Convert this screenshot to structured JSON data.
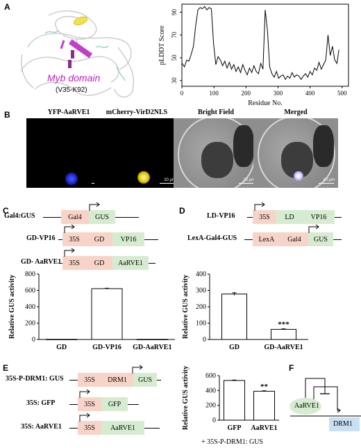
{
  "panels": {
    "A": "A",
    "B": "B",
    "C": "C",
    "D": "D",
    "E": "E",
    "F": "F"
  },
  "panel_a": {
    "domain_label": "Myb domain",
    "domain_range": "(V35-K92)"
  },
  "panel_b": {
    "titles": [
      "YFP-AaRVE1",
      "mCherry-VirD2NLS",
      "Bright Field",
      "Merged"
    ],
    "scale": "10 μm"
  },
  "panel_c": {
    "constructs": {
      "c1": {
        "label": "Gal4:GUS",
        "boxes": [
          "Gal4",
          "GUS"
        ]
      },
      "c2": {
        "label": "GD-VP16",
        "boxes": [
          "35S",
          "GD",
          "VP16"
        ]
      },
      "c3": {
        "label": "GD- AaRVE1",
        "boxes": [
          "35S",
          "GD",
          "AaRVE1"
        ]
      }
    }
  },
  "panel_d": {
    "constructs": {
      "c1": {
        "label": "LD-VP16",
        "boxes": [
          "35S",
          "LD",
          "VP16"
        ]
      },
      "c2": {
        "label": "LexA-Gal4-GUS",
        "boxes": [
          "LexA",
          "Gal4",
          "GUS"
        ]
      }
    }
  },
  "panel_e": {
    "constructs": {
      "c1": {
        "label": "35S-P-DRM1: GUS",
        "boxes": [
          "35S",
          "DRM1",
          "GUS"
        ]
      },
      "c2": {
        "label": "35S: GFP",
        "boxes": [
          "35S",
          "GFP"
        ]
      },
      "c3": {
        "label": "35S: AaRVE1",
        "boxes": [
          "35S",
          "AaRVE1"
        ]
      }
    },
    "footnote": "+ 35S-P-DRM1: GUS"
  },
  "panel_f": {
    "activator": "AaRVE1",
    "target": "DRM1"
  },
  "chart_data": [
    {
      "id": "A",
      "type": "line",
      "xlabel": "Residue No.",
      "ylabel": "pLDDT Score",
      "xlim": [
        0,
        520
      ],
      "ylim": [
        25,
        97
      ],
      "xticks": [
        0,
        100,
        200,
        300,
        400,
        500
      ],
      "yticks": [
        30,
        50,
        70,
        90
      ],
      "x": [
        1,
        8,
        15,
        22,
        29,
        36,
        43,
        50,
        57,
        64,
        71,
        78,
        85,
        92,
        99,
        106,
        113,
        120,
        127,
        134,
        141,
        148,
        155,
        162,
        169,
        176,
        183,
        190,
        197,
        204,
        211,
        218,
        225,
        232,
        239,
        246,
        253,
        260,
        267,
        274,
        281,
        288,
        295,
        302,
        309,
        316,
        323,
        330,
        337,
        344,
        351,
        358,
        365,
        372,
        379,
        386,
        393,
        400,
        407,
        414,
        421,
        428,
        435,
        442,
        449,
        456,
        463,
        470,
        477,
        484,
        490
      ],
      "y": [
        45,
        42,
        48,
        47,
        53,
        60,
        78,
        92,
        94,
        93,
        95,
        92,
        94,
        93,
        62,
        44,
        51,
        48,
        43,
        47,
        41,
        46,
        40,
        44,
        38,
        42,
        37,
        44,
        39,
        35,
        41,
        37,
        43,
        38,
        36,
        45,
        40,
        92,
        74,
        42,
        36,
        33,
        38,
        32,
        34,
        35,
        31,
        34,
        32,
        37,
        33,
        35,
        34,
        31,
        34,
        36,
        33,
        38,
        35,
        41,
        39,
        46,
        40,
        44,
        48,
        70,
        52,
        60,
        48,
        45,
        57
      ]
    },
    {
      "id": "C",
      "type": "bar",
      "ylabel": "Relative GUS activity",
      "categories": [
        "GD",
        "GD-VP16",
        "GD-AaRVE1"
      ],
      "values": [
        2,
        622,
        2
      ],
      "errors": [
        0,
        5,
        0
      ],
      "ylim": [
        0,
        800
      ],
      "yticks": [
        0,
        200,
        400,
        600,
        800
      ]
    },
    {
      "id": "D",
      "type": "bar",
      "ylabel": "Relative GUS activity",
      "categories": [
        "GD",
        "GD-AaRVE1"
      ],
      "values": [
        278,
        62
      ],
      "errors": [
        8,
        3
      ],
      "significance": [
        "",
        "***"
      ],
      "ylim": [
        0,
        400
      ],
      "yticks": [
        0,
        100,
        200,
        300,
        400
      ]
    },
    {
      "id": "E",
      "type": "bar",
      "ylabel": "Relative GUS activity",
      "categories": [
        "GFP",
        "AaRVE1"
      ],
      "values": [
        535,
        390
      ],
      "errors": [
        6,
        6
      ],
      "significance": [
        "",
        "**"
      ],
      "ylim": [
        0,
        600
      ],
      "yticks": [
        0,
        200,
        400,
        600
      ]
    }
  ]
}
